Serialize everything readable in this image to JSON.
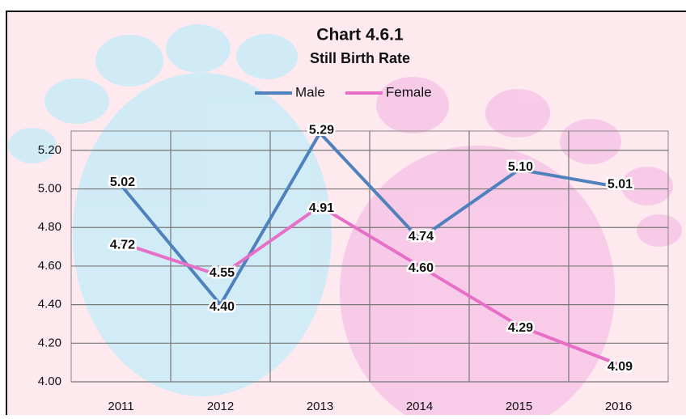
{
  "chart_data": {
    "type": "line",
    "title": "Chart 4.6.1",
    "subtitle": "Still Birth Rate",
    "categories": [
      "2011",
      "2012",
      "2013",
      "2014",
      "2015",
      "2016"
    ],
    "series": [
      {
        "name": "Male",
        "color": "#4f81bd",
        "values": [
          5.02,
          4.4,
          5.29,
          4.74,
          5.1,
          5.01
        ],
        "value_labels": [
          "5.02",
          "4.40",
          "5.29",
          "4.74",
          "5.10",
          "5.01"
        ]
      },
      {
        "name": "Female",
        "color": "#e86fc8",
        "values": [
          4.72,
          4.55,
          4.91,
          4.6,
          4.29,
          4.09
        ],
        "value_labels": [
          "4.72",
          "4.55",
          "4.91",
          "4.60",
          "4.29",
          "4.09"
        ]
      }
    ],
    "ylim": [
      4.0,
      5.3
    ],
    "yticks": [
      {
        "value": 4.0,
        "label": "4.00"
      },
      {
        "value": 4.2,
        "label": "4.20"
      },
      {
        "value": 4.4,
        "label": "4.40"
      },
      {
        "value": 4.6,
        "label": "4.60"
      },
      {
        "value": 4.8,
        "label": "4.80"
      },
      {
        "value": 5.0,
        "label": "5.00"
      },
      {
        "value": 5.2,
        "label": "5.20"
      }
    ],
    "grid": true,
    "legend": "top"
  }
}
